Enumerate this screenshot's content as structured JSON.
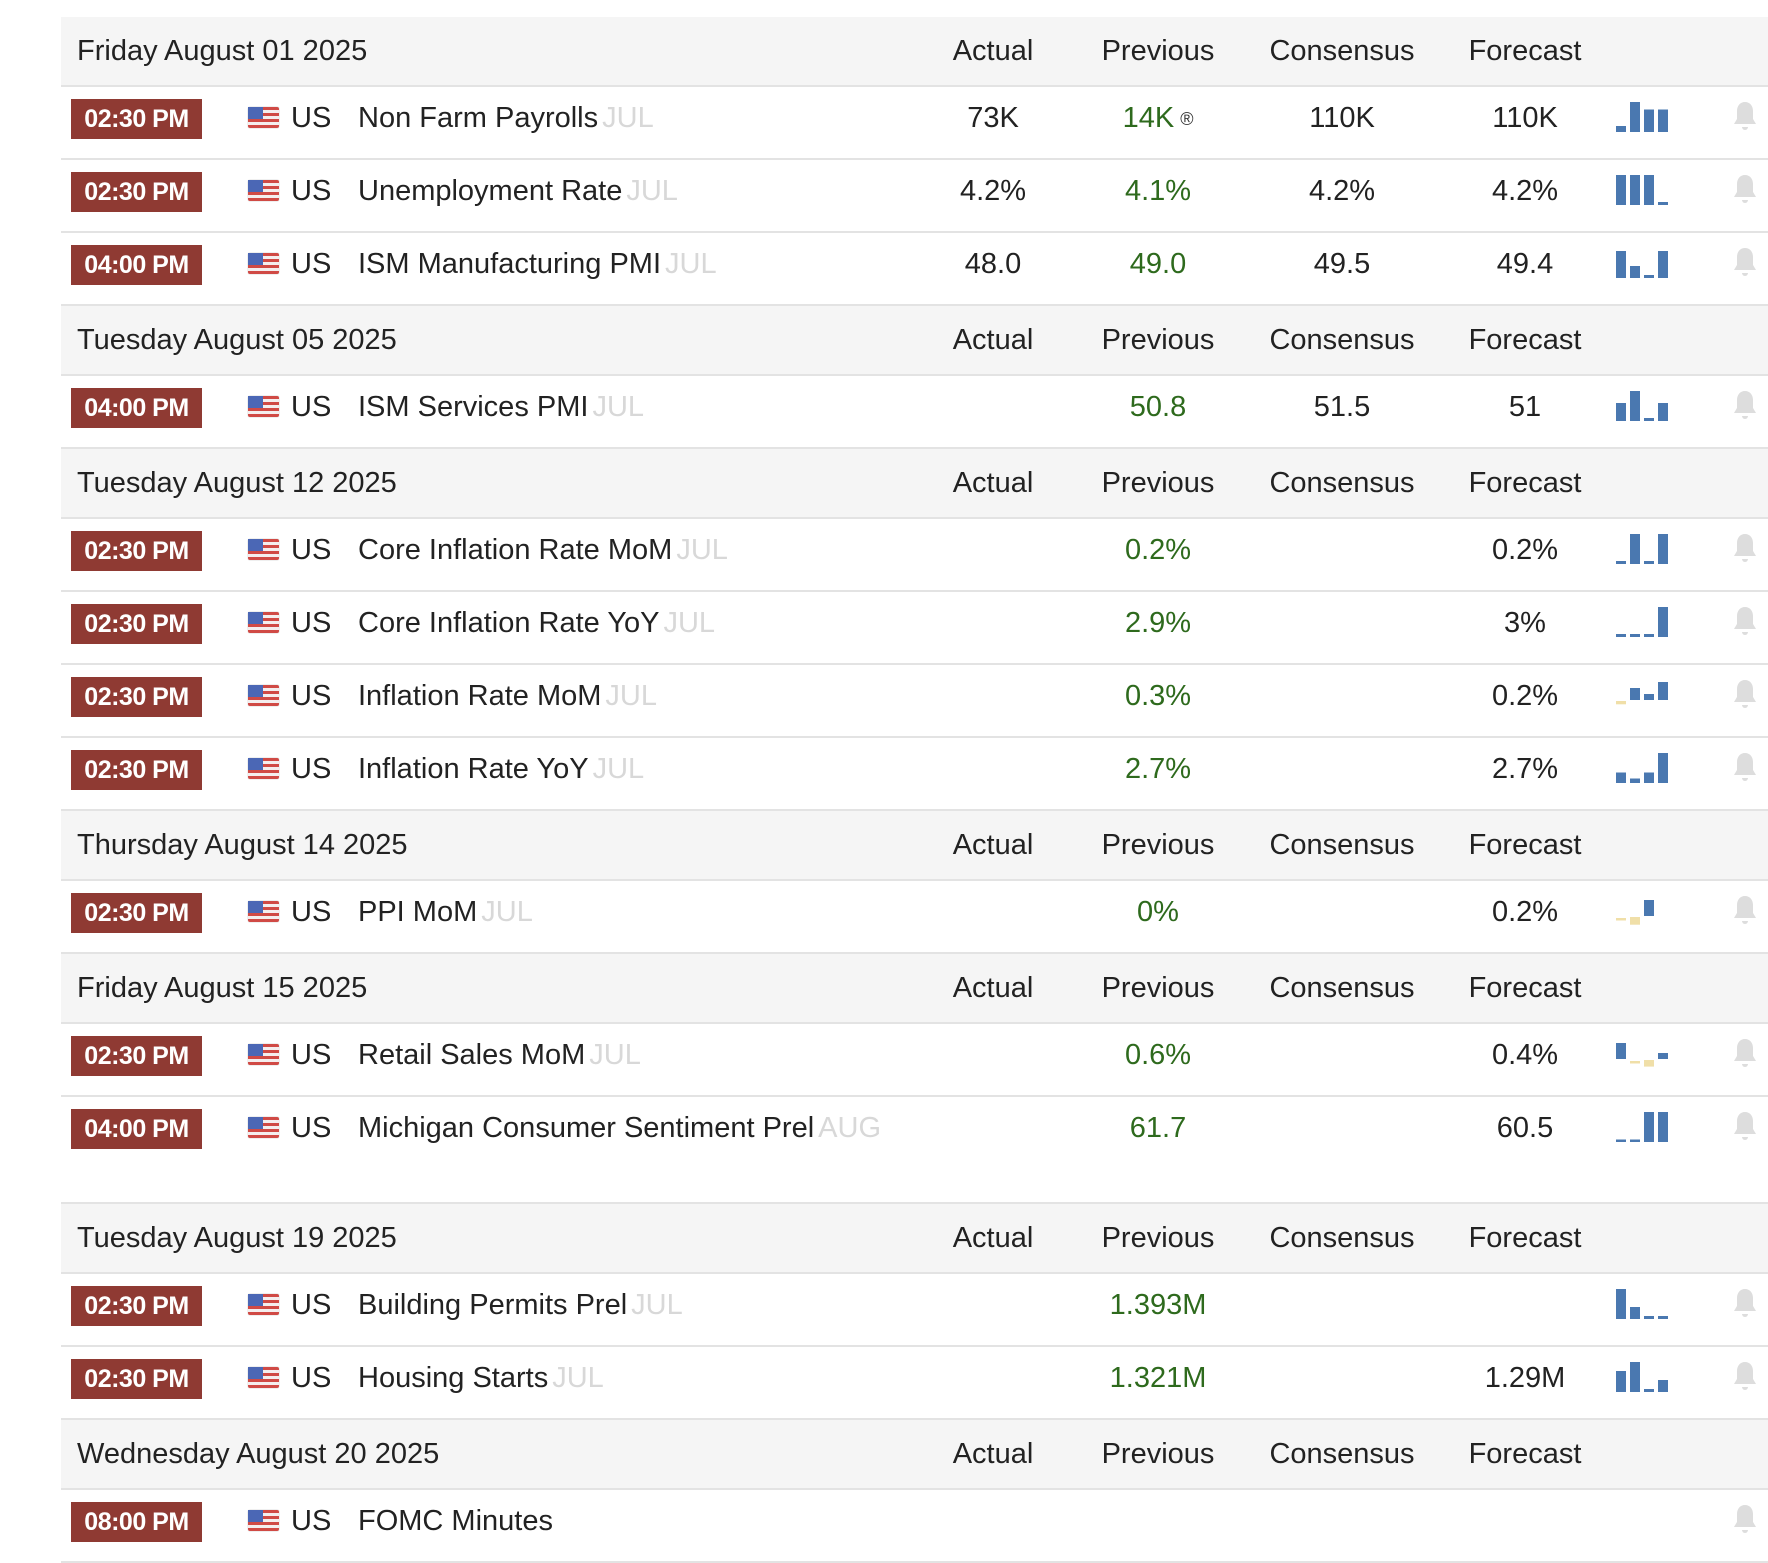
{
  "columns": {
    "actual": "Actual",
    "previous": "Previous",
    "consensus": "Consensus",
    "forecast": "Forecast"
  },
  "colors": {
    "badge": "#8f3a33",
    "previous": "#2e6a1d",
    "spark_pos": "#4a78b0",
    "spark_neg": "#f0dfa8",
    "bell": "#dddddd"
  },
  "days": [
    {
      "date": "Friday August 01 2025",
      "events": [
        {
          "time": "02:30 PM",
          "country": "US",
          "name": "Non Farm Payrolls",
          "ref": "JUL",
          "actual": "73K",
          "previous": "14K",
          "revised_mark": "®",
          "consensus": "110K",
          "forecast": "110K",
          "spark": [
            0.2,
            1,
            0.75,
            0.75
          ]
        },
        {
          "time": "02:30 PM",
          "country": "US",
          "name": "Unemployment Rate",
          "ref": "JUL",
          "actual": "4.2%",
          "previous": "4.1%",
          "consensus": "4.2%",
          "forecast": "4.2%",
          "spark": [
            1,
            1,
            1,
            0.1
          ]
        },
        {
          "time": "04:00 PM",
          "country": "US",
          "name": "ISM Manufacturing PMI",
          "ref": "JUL",
          "actual": "48.0",
          "previous": "49.0",
          "consensus": "49.5",
          "forecast": "49.4",
          "spark": [
            0.9,
            0.4,
            0.1,
            0.9
          ]
        }
      ]
    },
    {
      "date": "Tuesday August 05 2025",
      "events": [
        {
          "time": "04:00 PM",
          "country": "US",
          "name": "ISM Services PMI",
          "ref": "JUL",
          "actual": "",
          "previous": "50.8",
          "consensus": "51.5",
          "forecast": "51",
          "spark": [
            0.6,
            1,
            0.1,
            0.6
          ]
        }
      ]
    },
    {
      "date": "Tuesday August 12 2025",
      "events": [
        {
          "time": "02:30 PM",
          "country": "US",
          "name": "Core Inflation Rate MoM",
          "ref": "JUL",
          "actual": "",
          "previous": "0.2%",
          "consensus": "",
          "forecast": "0.2%",
          "spark": [
            0.1,
            1,
            0.1,
            1
          ]
        },
        {
          "time": "02:30 PM",
          "country": "US",
          "name": "Core Inflation Rate YoY",
          "ref": "JUL",
          "actual": "",
          "previous": "2.9%",
          "consensus": "",
          "forecast": "3%",
          "spark": [
            0.1,
            0.1,
            0.1,
            1
          ]
        },
        {
          "time": "02:30 PM",
          "country": "US",
          "name": "Inflation Rate MoM",
          "ref": "JUL",
          "actual": "",
          "previous": "0.3%",
          "consensus": "",
          "forecast": "0.2%",
          "spark": [
            -0.3,
            0.6,
            0.3,
            0.9
          ]
        },
        {
          "time": "02:30 PM",
          "country": "US",
          "name": "Inflation Rate YoY",
          "ref": "JUL",
          "actual": "",
          "previous": "2.7%",
          "consensus": "",
          "forecast": "2.7%",
          "spark": [
            0.35,
            0.15,
            0.35,
            1
          ]
        }
      ]
    },
    {
      "date": "Thursday August 14 2025",
      "events": [
        {
          "time": "02:30 PM",
          "country": "US",
          "name": "PPI MoM",
          "ref": "JUL",
          "actual": "",
          "previous": "0%",
          "consensus": "",
          "forecast": "0.2%",
          "spark": [
            -0.1,
            -0.7,
            0.8,
            null
          ]
        }
      ]
    },
    {
      "date": "Friday August 15 2025",
      "events": [
        {
          "time": "02:30 PM",
          "country": "US",
          "name": "Retail Sales MoM",
          "ref": "JUL",
          "actual": "",
          "previous": "0.6%",
          "consensus": "",
          "forecast": "0.4%",
          "spark": [
            0.8,
            -0.1,
            -0.6,
            0.3
          ]
        },
        {
          "time": "04:00 PM",
          "country": "US",
          "name": "Michigan Consumer Sentiment Prel",
          "ref": "AUG",
          "actual": "",
          "previous": "61.7",
          "consensus": "",
          "forecast": "60.5",
          "spark": [
            0.05,
            0.05,
            1,
            1
          ],
          "tall": true
        }
      ]
    },
    {
      "date": "Tuesday August 19 2025",
      "events": [
        {
          "time": "02:30 PM",
          "country": "US",
          "name": "Building Permits Prel",
          "ref": "JUL",
          "actual": "",
          "previous": "1.393M",
          "consensus": "",
          "forecast": "",
          "spark": [
            1,
            0.4,
            0.1,
            0.1
          ]
        },
        {
          "time": "02:30 PM",
          "country": "US",
          "name": "Housing Starts",
          "ref": "JUL",
          "actual": "",
          "previous": "1.321M",
          "consensus": "",
          "forecast": "1.29M",
          "spark": [
            0.7,
            1,
            0.1,
            0.4
          ]
        }
      ]
    },
    {
      "date": "Wednesday August 20 2025",
      "events": [
        {
          "time": "08:00 PM",
          "country": "US",
          "name": "FOMC Minutes",
          "ref": "",
          "actual": "",
          "previous": "",
          "consensus": "",
          "forecast": "",
          "spark": null
        }
      ]
    }
  ]
}
